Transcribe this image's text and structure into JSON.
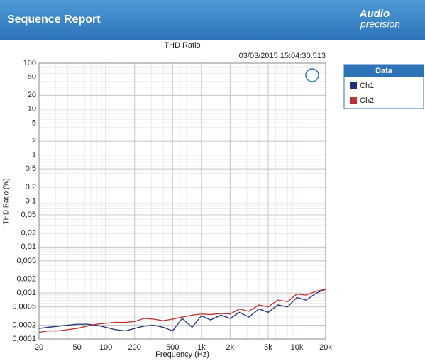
{
  "header": {
    "title": "Sequence Report",
    "logo": [
      "Audio",
      "precision"
    ]
  },
  "chart_data": {
    "type": "line",
    "title": "THD Ratio",
    "subtitle": "03/03/2015 15:04:30.513",
    "x_label": "Frequency (Hz)",
    "y_label": "THD Ratio (%)",
    "x_log": true,
    "y_log": true,
    "grid": true,
    "minor_grid": true,
    "legend_title": "Data",
    "legend": "outside-right",
    "xlim": [
      20,
      20000
    ],
    "xticks": [
      20,
      50,
      100,
      200,
      500,
      {
        "value": 1000,
        "label": "1k"
      },
      {
        "value": 2000,
        "label": "2k"
      },
      {
        "value": 5000,
        "label": "5k"
      },
      {
        "value": 10000,
        "label": "10k"
      },
      {
        "value": 20000,
        "label": "20k"
      }
    ],
    "ylim": [
      0.0001,
      100
    ],
    "yticks": [
      100,
      50,
      20,
      10,
      5,
      2,
      1,
      {
        "value": 0.5,
        "label": "0,5"
      },
      {
        "value": 0.2,
        "label": "0,2"
      },
      {
        "value": 0.1,
        "label": "0,1"
      },
      {
        "value": 0.05,
        "label": "0,05"
      },
      {
        "value": 0.02,
        "label": "0,02"
      },
      {
        "value": 0.01,
        "label": "0,01"
      },
      {
        "value": 0.005,
        "label": "0,005"
      },
      {
        "value": 0.002,
        "label": "0,002"
      },
      {
        "value": 0.001,
        "label": "0,001"
      },
      {
        "value": 0.0005,
        "label": "0,0005"
      },
      {
        "value": 0.0002,
        "label": "0,0002"
      },
      {
        "value": 0.0001,
        "label": "0,0001"
      }
    ],
    "x": [
      20,
      25,
      32,
      40,
      50,
      63,
      80,
      100,
      125,
      160,
      200,
      250,
      315,
      400,
      500,
      630,
      800,
      1000,
      1250,
      1600,
      2000,
      2500,
      3150,
      4000,
      5000,
      6300,
      8000,
      10000,
      12500,
      16000,
      20000
    ],
    "series": [
      {
        "name": "Ch1",
        "color": "#1f2f7a",
        "values": [
          0.00017,
          0.00018,
          0.00019,
          0.0002,
          0.00021,
          0.00021,
          0.0002,
          0.00018,
          0.00016,
          0.00015,
          0.00017,
          0.00019,
          0.0002,
          0.00018,
          0.00015,
          0.00028,
          0.00018,
          0.00032,
          0.00026,
          0.00033,
          0.00028,
          0.00038,
          0.0003,
          0.00045,
          0.00038,
          0.00055,
          0.0005,
          0.0008,
          0.0007,
          0.001,
          0.0012
        ]
      },
      {
        "name": "Ch2",
        "color": "#c0302c",
        "values": [
          0.00014,
          0.00015,
          0.00015,
          0.00016,
          0.00017,
          0.00019,
          0.00021,
          0.00022,
          0.00023,
          0.00023,
          0.00024,
          0.00028,
          0.00027,
          0.00025,
          0.00027,
          0.0003,
          0.00033,
          0.00035,
          0.00034,
          0.00036,
          0.00035,
          0.00045,
          0.0004,
          0.00055,
          0.0005,
          0.0007,
          0.00065,
          0.00095,
          0.0009,
          0.0011,
          0.0012
        ]
      }
    ]
  }
}
